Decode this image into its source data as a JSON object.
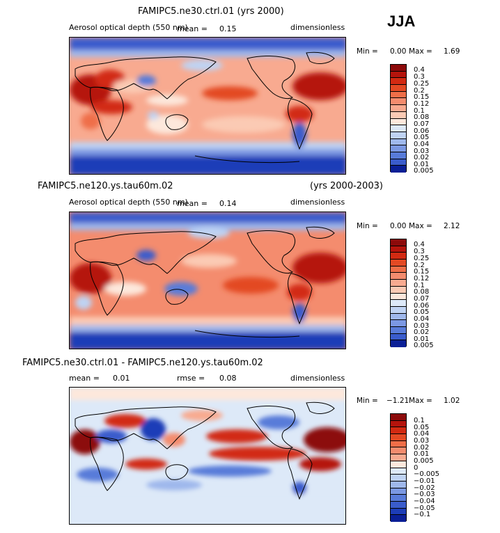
{
  "season": "JJA",
  "panels": [
    {
      "title": "FAMIPC5.ne30.ctrl.01 (yrs 2000)",
      "title_right": "",
      "variable": "Aerosol optical depth (550 nm)",
      "mean_label": "mean =",
      "mean_value": "0.15",
      "rmse_label": "",
      "rmse_value": "",
      "units": "dimensionless",
      "min_label": "Min =",
      "min_value": "0.00",
      "max_label": "Max =",
      "max_value": "1.69",
      "colorbar_labels": [
        "0.4",
        "0.3",
        "0.25",
        "0.2",
        "0.15",
        "0.12",
        "0.1",
        "0.08",
        "0.07",
        "0.06",
        "0.05",
        "0.04",
        "0.03",
        "0.02",
        "0.01",
        "0.005"
      ]
    },
    {
      "title": "FAMIPC5.ne120.ys.tau60m.02",
      "title_right": "(yrs 2000-2003)",
      "variable": "Aerosol optical depth (550 nm)",
      "mean_label": "mean =",
      "mean_value": "0.14",
      "rmse_label": "",
      "rmse_value": "",
      "units": "dimensionless",
      "min_label": "Min =",
      "min_value": "0.00",
      "max_label": "Max =",
      "max_value": "2.12",
      "colorbar_labels": [
        "0.4",
        "0.3",
        "0.25",
        "0.2",
        "0.15",
        "0.12",
        "0.1",
        "0.08",
        "0.07",
        "0.06",
        "0.05",
        "0.04",
        "0.03",
        "0.02",
        "0.01",
        "0.005"
      ]
    },
    {
      "title": "FAMIPC5.ne30.ctrl.01 - FAMIPC5.ne120.ys.tau60m.02",
      "title_right": "",
      "variable": "",
      "mean_label": "mean =",
      "mean_value": "0.01",
      "rmse_label": "rmse =",
      "rmse_value": "0.08",
      "units": "dimensionless",
      "min_label": "Min =",
      "min_value": "−1.21",
      "max_label": "Max =",
      "max_value": "1.02",
      "colorbar_labels": [
        "0.1",
        "0.05",
        "0.04",
        "0.03",
        "0.02",
        "0.01",
        "0.005",
        "0",
        "−0.005",
        "−0.01",
        "−0.02",
        "−0.03",
        "−0.04",
        "−0.05",
        "−0.1"
      ]
    }
  ],
  "colors": {
    "abs_scale": [
      "#8c0a0a",
      "#b5140c",
      "#d22a12",
      "#e34a24",
      "#ef6e48",
      "#f48c6e",
      "#f8aa90",
      "#fbcab4",
      "#fde8dc",
      "#dde9f8",
      "#bfd3f3",
      "#9fb8ec",
      "#7b98e3",
      "#587bd9",
      "#3a5ccc",
      "#1d3db8",
      "#0a1f96"
    ],
    "diff_scale": [
      "#8c0a0a",
      "#b5140c",
      "#d22a12",
      "#e34a24",
      "#ef6e48",
      "#f48c6e",
      "#f8aa90",
      "#fbcab4",
      "#fde8dc",
      "#dde9f8",
      "#bfd3f3",
      "#9fb8ec",
      "#7b98e3",
      "#587bd9",
      "#3a5ccc",
      "#0a1f96"
    ]
  },
  "chart_data": [
    {
      "type": "heatmap",
      "title": "FAMIPC5.ne30.ctrl.01 (yrs 2000)",
      "field": "Aerosol optical depth (550 nm)",
      "units": "dimensionless",
      "season": "JJA",
      "mean": 0.15,
      "min": 0.0,
      "max": 1.69,
      "contour_levels": [
        0.005,
        0.01,
        0.02,
        0.03,
        0.04,
        0.05,
        0.06,
        0.07,
        0.08,
        0.1,
        0.12,
        0.15,
        0.2,
        0.25,
        0.3,
        0.4
      ]
    },
    {
      "type": "heatmap",
      "title": "FAMIPC5.ne120.ys.tau60m.02 (yrs 2000-2003)",
      "field": "Aerosol optical depth (550 nm)",
      "units": "dimensionless",
      "season": "JJA",
      "mean": 0.14,
      "min": 0.0,
      "max": 2.12,
      "contour_levels": [
        0.005,
        0.01,
        0.02,
        0.03,
        0.04,
        0.05,
        0.06,
        0.07,
        0.08,
        0.1,
        0.12,
        0.15,
        0.2,
        0.25,
        0.3,
        0.4
      ]
    },
    {
      "type": "heatmap",
      "title": "FAMIPC5.ne30.ctrl.01 - FAMIPC5.ne120.ys.tau60m.02",
      "units": "dimensionless",
      "season": "JJA",
      "mean": 0.01,
      "rmse": 0.08,
      "min": -1.21,
      "max": 1.02,
      "contour_levels": [
        -0.1,
        -0.05,
        -0.04,
        -0.03,
        -0.02,
        -0.01,
        -0.005,
        0,
        0.005,
        0.01,
        0.02,
        0.03,
        0.04,
        0.05,
        0.1
      ]
    }
  ]
}
